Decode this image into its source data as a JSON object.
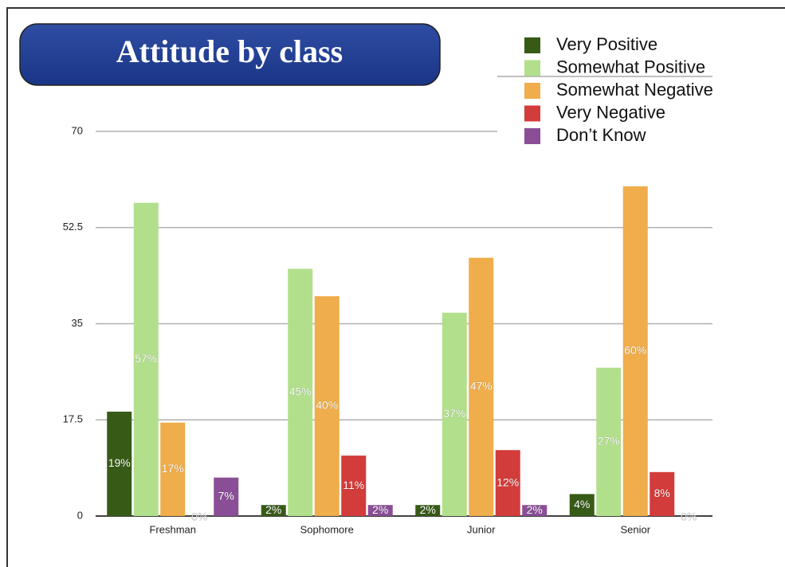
{
  "chart_data": {
    "type": "bar",
    "title": "Attitude by class",
    "categories": [
      "Freshman",
      "Sophomore",
      "Junior",
      "Senior"
    ],
    "series": [
      {
        "name": "Very Positive",
        "color": "#375a16",
        "values": [
          19,
          2,
          2,
          4
        ],
        "value_labels": [
          "19%",
          "2%",
          "2%",
          "4%"
        ]
      },
      {
        "name": "Somewhat Positive",
        "color": "#b2df8c",
        "values": [
          57,
          45,
          37,
          27
        ],
        "value_labels": [
          "57%",
          "45%",
          "37%",
          "27%"
        ]
      },
      {
        "name": "Somewhat Negative",
        "color": "#efad4b",
        "values": [
          17,
          40,
          47,
          60
        ],
        "value_labels": [
          "17%",
          "40%",
          "47%",
          "60%"
        ]
      },
      {
        "name": "Very Negative",
        "color": "#d23c3a",
        "values": [
          0,
          11,
          12,
          8
        ],
        "value_labels": [
          "0%",
          "11%",
          "12%",
          "8%"
        ]
      },
      {
        "name": "Don’t Know",
        "color": "#8a4e96",
        "values": [
          7,
          2,
          2,
          0
        ],
        "value_labels": [
          "7%",
          "2%",
          "2%",
          "0%"
        ]
      }
    ],
    "ylim": [
      0,
      70
    ],
    "yticks": [
      0,
      17.5,
      35,
      52.5,
      70
    ],
    "grid": true,
    "legend": "top-right"
  }
}
